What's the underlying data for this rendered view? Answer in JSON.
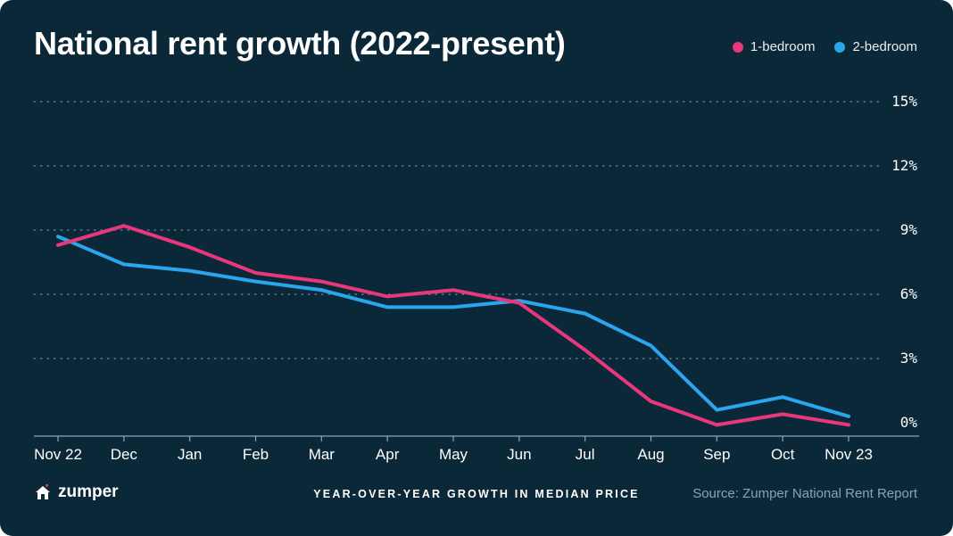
{
  "brand": {
    "name": "zumper",
    "icon": "home-icon",
    "accent": "#e8377b"
  },
  "chart_data": {
    "type": "line",
    "title": "National rent growth (2022-present)",
    "xlabel": "YEAR-OVER-YEAR GROWTH IN MEDIAN PRICE",
    "ylabel": "",
    "categories": [
      "Nov 22",
      "Dec",
      "Jan",
      "Feb",
      "Mar",
      "Apr",
      "May",
      "Jun",
      "Jul",
      "Aug",
      "Sep",
      "Oct",
      "Nov 23"
    ],
    "ylim": [
      0,
      15
    ],
    "yticks": [
      0,
      3,
      6,
      9,
      12,
      15
    ],
    "ytick_labels": [
      "0%",
      "3%",
      "6%",
      "9%",
      "12%",
      "15%"
    ],
    "grid": true,
    "legend_position": "top-right",
    "series": [
      {
        "name": "1-bedroom",
        "color": "#e8377b",
        "values": [
          8.3,
          9.2,
          8.2,
          7.0,
          6.6,
          5.9,
          6.2,
          5.6,
          3.4,
          1.0,
          -0.1,
          0.4,
          -0.1
        ]
      },
      {
        "name": "2-bedroom",
        "color": "#2aa6ec",
        "values": [
          8.7,
          7.4,
          7.1,
          6.6,
          6.2,
          5.4,
          5.4,
          5.7,
          5.1,
          3.6,
          0.6,
          1.2,
          0.3
        ]
      }
    ]
  },
  "source": "Source: Zumper National Rent Report"
}
